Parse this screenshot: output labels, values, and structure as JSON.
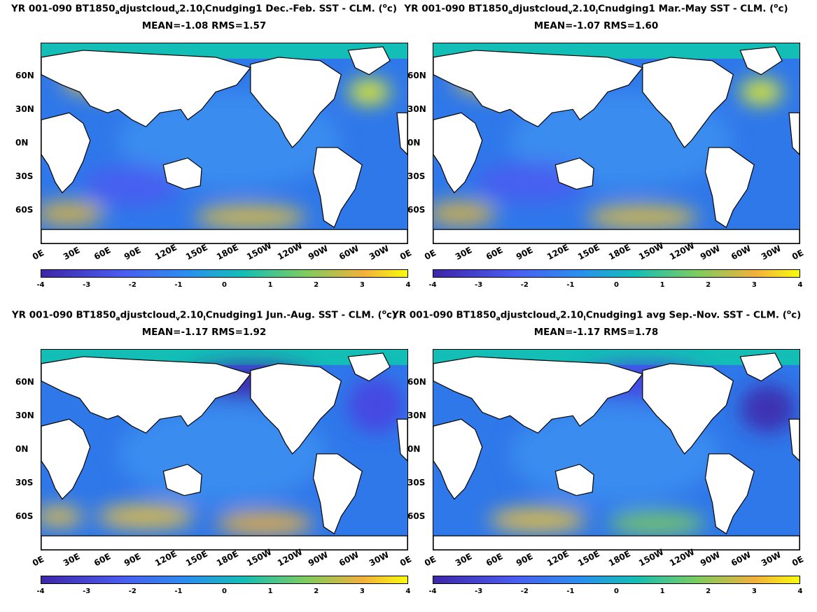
{
  "panels": [
    {
      "title_prefix": "YR 001-090 BT1850",
      "title_sub1": "a",
      "title_mid1": "djustcloud",
      "title_sub2": "v",
      "title_mid2": "2.10",
      "title_sub3": "I",
      "title_suffix": "Cnudging1  Dec.-Feb. SST - CLM. (",
      "title_sup": "o",
      "title_end": "c)",
      "stats": "MEAN=-1.08   RMS=1.57",
      "season": "Dec.-Feb."
    },
    {
      "title_prefix": "YR 001-090 BT1850",
      "title_sub1": "a",
      "title_mid1": "djustcloud",
      "title_sub2": "v",
      "title_mid2": "2.10",
      "title_sub3": "I",
      "title_suffix": "Cnudging1 Mar.-May SST - CLM. (",
      "title_sup": "o",
      "title_end": "c)",
      "stats": "MEAN=-1.07   RMS=1.60",
      "season": "Mar.-May"
    },
    {
      "title_prefix": "YR 001-090 BT1850",
      "title_sub1": "a",
      "title_mid1": "djustcloud",
      "title_sub2": "v",
      "title_mid2": "2.10",
      "title_sub3": "I",
      "title_suffix": "Cnudging1 Jun.-Aug. SST - CLM. (",
      "title_sup": "o",
      "title_end": "c)",
      "stats": "MEAN=-1.17   RMS=1.92",
      "season": "Jun.-Aug."
    },
    {
      "title_prefix": "YR 001-090 BT1850",
      "title_sub1": "a",
      "title_mid1": "djustcloud",
      "title_sub2": "v",
      "title_mid2": "2.10",
      "title_sub3": "I",
      "title_suffix": "Cnudging1 avg Sep.-Nov. SST - CLM. (",
      "title_sup": "o",
      "title_end": "c)",
      "stats": "MEAN=-1.17   RMS=1.78",
      "season": "Sep.-Nov."
    }
  ],
  "lat_labels": [
    "60N",
    "30N",
    "0N",
    "30S",
    "60S"
  ],
  "lon_labels": [
    "0E",
    "30E",
    "60E",
    "90E",
    "120E",
    "150E",
    "180E",
    "150W",
    "120W",
    "90W",
    "60W",
    "30W",
    "0E"
  ],
  "colorbar_ticks": [
    "-4",
    "-3",
    "-2",
    "-1",
    "0",
    "1",
    "2",
    "3",
    "4"
  ],
  "colormap": {
    "low": "#3e26a8",
    "mid": "#13beb7",
    "high": "#f9fb0e"
  },
  "value_range": [
    -4,
    4
  ],
  "lat_range": [
    -90,
    90
  ],
  "lon_range": [
    0,
    360
  ]
}
